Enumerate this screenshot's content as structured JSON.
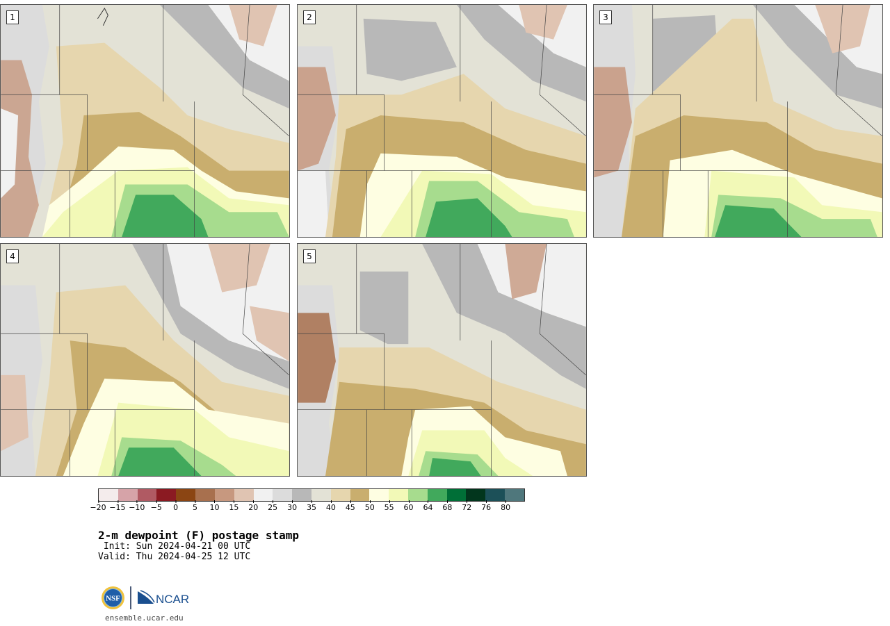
{
  "members": [
    {
      "label": "1"
    },
    {
      "label": "2"
    },
    {
      "label": "3"
    },
    {
      "label": "4"
    },
    {
      "label": "5"
    }
  ],
  "colorbar": {
    "colors": [
      "#f4ecec",
      "#d6a3a8",
      "#b05a63",
      "#8b1a22",
      "#8b4513",
      "#a8704e",
      "#c7987f",
      "#e0c4b2",
      "#f1f1f1",
      "#dcdcdc",
      "#b8b8b8",
      "#e3e2d6",
      "#e6d6ae",
      "#c9ae6e",
      "#fefee2",
      "#f2f9b7",
      "#a7dc8e",
      "#41a95c",
      "#006f37",
      "#02361d",
      "#1c5058",
      "#4f777c"
    ],
    "ticks": [
      "−20",
      "−15",
      "−10",
      "−5",
      "0",
      "5",
      "10",
      "15",
      "20",
      "25",
      "30",
      "35",
      "40",
      "45",
      "50",
      "55",
      "60",
      "64",
      "68",
      "72",
      "76",
      "80"
    ]
  },
  "title": "2-m dewpoint (F) postage stamp",
  "init": " Init: Sun 2024-04-21 00 UTC",
  "valid": "Valid: Thu 2024-04-25 12 UTC",
  "logos": {
    "nsf": "NSF",
    "ncar": "NCAR"
  },
  "site": "ensemble.ucar.edu"
}
